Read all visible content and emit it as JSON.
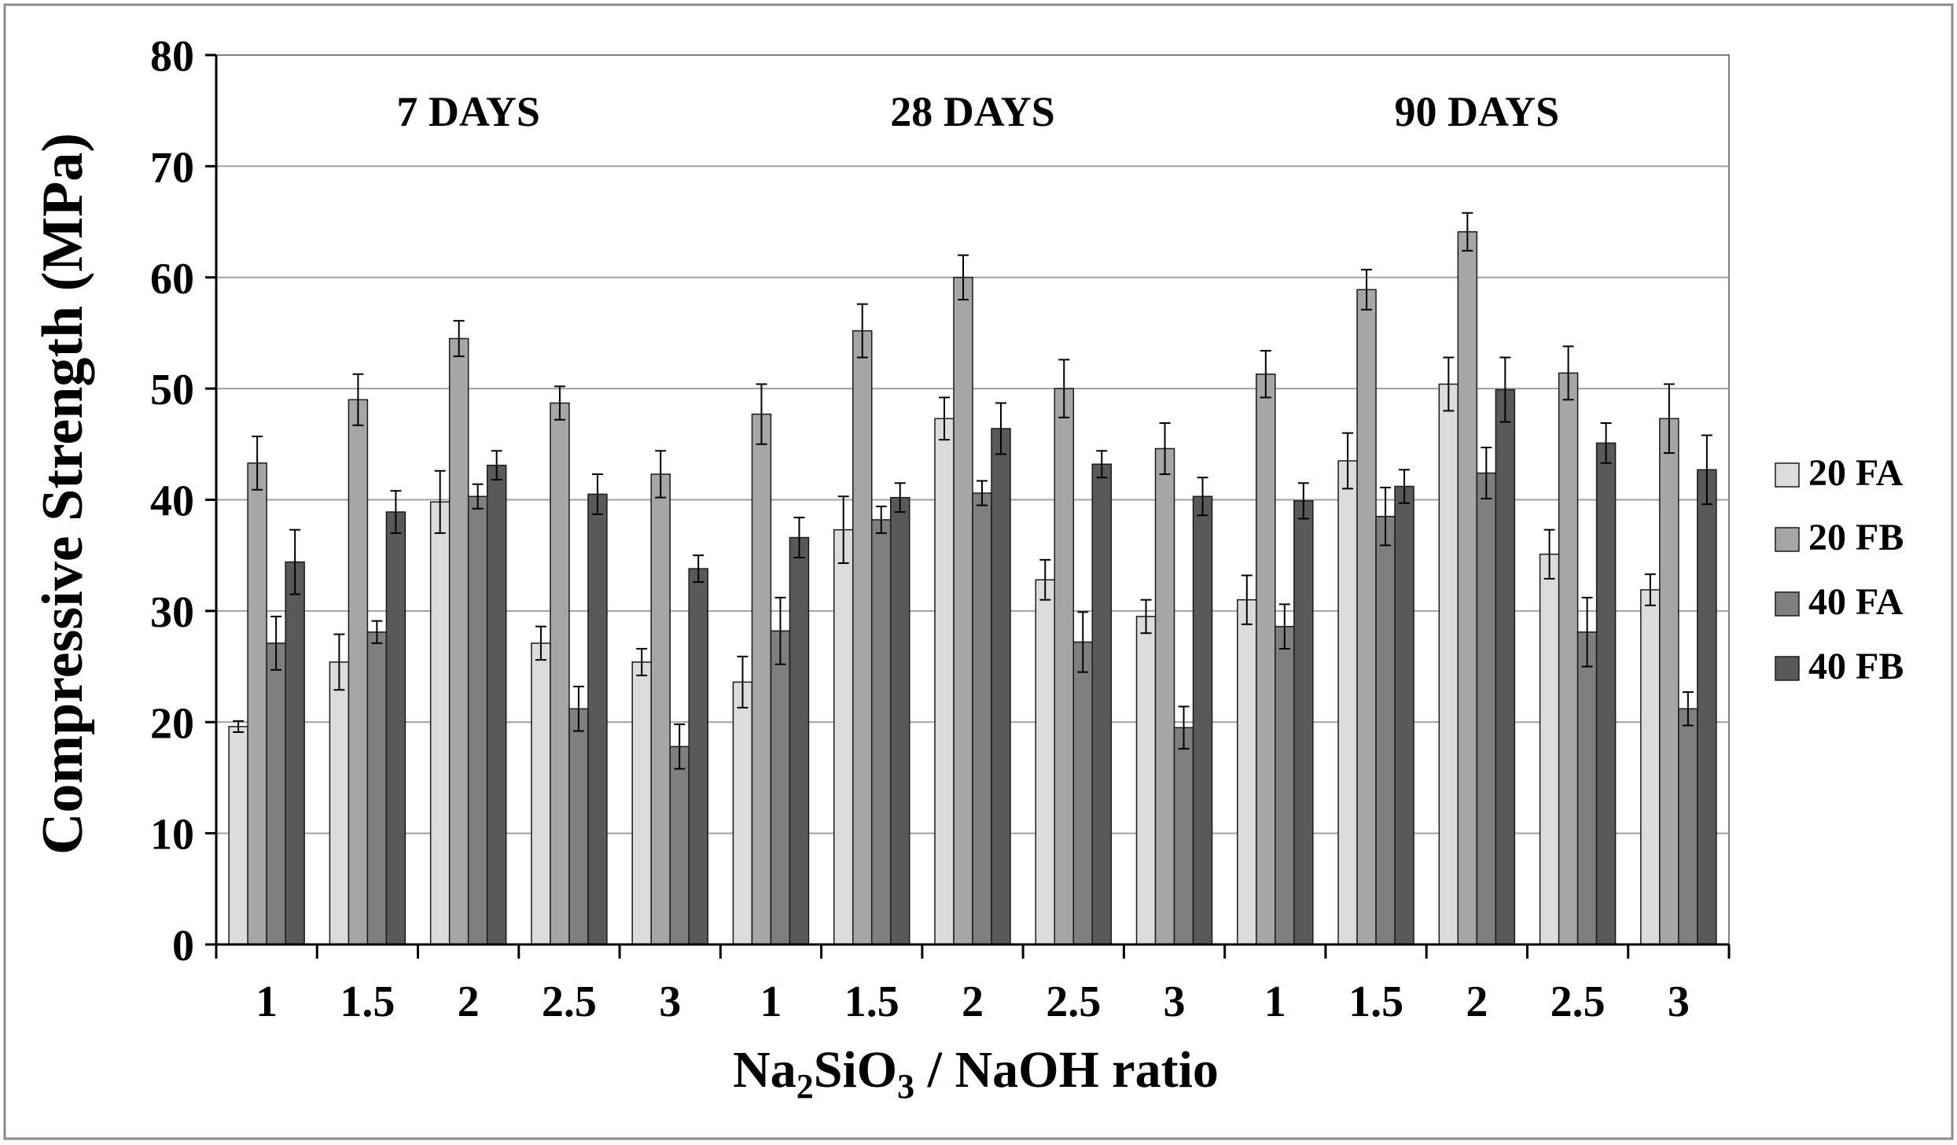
{
  "chart_data": {
    "type": "bar",
    "title": "",
    "ylabel": "Compressive Strength (MPa)",
    "xlabel": {
      "prefix": "Na",
      "sub1": "2",
      "mid": "SiO",
      "sub2": "3",
      "suffix": " / NaOH ratio"
    },
    "ylim": [
      0,
      80
    ],
    "yticks": [
      0,
      10,
      20,
      30,
      40,
      50,
      60,
      70,
      80
    ],
    "grid": true,
    "legend_position": "right",
    "groups": [
      {
        "label": "7 DAYS",
        "categories": [
          "1",
          "1.5",
          "2",
          "2.5",
          "3"
        ]
      },
      {
        "label": "28 DAYS",
        "categories": [
          "1",
          "1.5",
          "2",
          "2.5",
          "3"
        ]
      },
      {
        "label": "90 DAYS",
        "categories": [
          "1",
          "1.5",
          "2",
          "2.5",
          "3"
        ]
      }
    ],
    "series": [
      {
        "name": "20 FA",
        "color": "#dcdcdc",
        "values": [
          19.6,
          25.4,
          39.8,
          27.1,
          25.4,
          23.6,
          37.3,
          47.3,
          32.8,
          29.5,
          31.0,
          43.5,
          50.4,
          35.1,
          31.9
        ],
        "errors": [
          0.5,
          2.5,
          2.8,
          1.5,
          1.2,
          2.3,
          3.0,
          1.9,
          1.8,
          1.5,
          2.2,
          2.5,
          2.4,
          2.2,
          1.4
        ]
      },
      {
        "name": "20 FB",
        "color": "#a6a6a6",
        "values": [
          43.3,
          49.0,
          54.5,
          48.7,
          42.3,
          47.7,
          55.2,
          60.0,
          50.0,
          44.6,
          51.3,
          58.9,
          64.1,
          51.4,
          47.3
        ],
        "errors": [
          2.4,
          2.3,
          1.6,
          1.5,
          2.1,
          2.7,
          2.4,
          2.0,
          2.6,
          2.3,
          2.1,
          1.8,
          1.7,
          2.4,
          3.1
        ]
      },
      {
        "name": "40 FA",
        "color": "#7f7f7f",
        "values": [
          27.1,
          28.1,
          40.3,
          21.2,
          17.8,
          28.2,
          38.2,
          40.6,
          27.2,
          19.5,
          28.6,
          38.5,
          42.4,
          28.1,
          21.2
        ],
        "errors": [
          2.4,
          1.0,
          1.1,
          2.0,
          2.0,
          3.0,
          1.2,
          1.1,
          2.7,
          1.9,
          2.0,
          2.6,
          2.3,
          3.1,
          1.5
        ]
      },
      {
        "name": "40 FB",
        "color": "#595959",
        "values": [
          34.4,
          38.9,
          43.1,
          40.5,
          33.8,
          36.6,
          40.2,
          46.4,
          43.2,
          40.3,
          39.9,
          41.2,
          49.9,
          45.1,
          42.7
        ],
        "errors": [
          2.9,
          1.9,
          1.3,
          1.8,
          1.2,
          1.8,
          1.3,
          2.3,
          1.2,
          1.7,
          1.6,
          1.5,
          2.9,
          1.8,
          3.1
        ]
      }
    ]
  }
}
